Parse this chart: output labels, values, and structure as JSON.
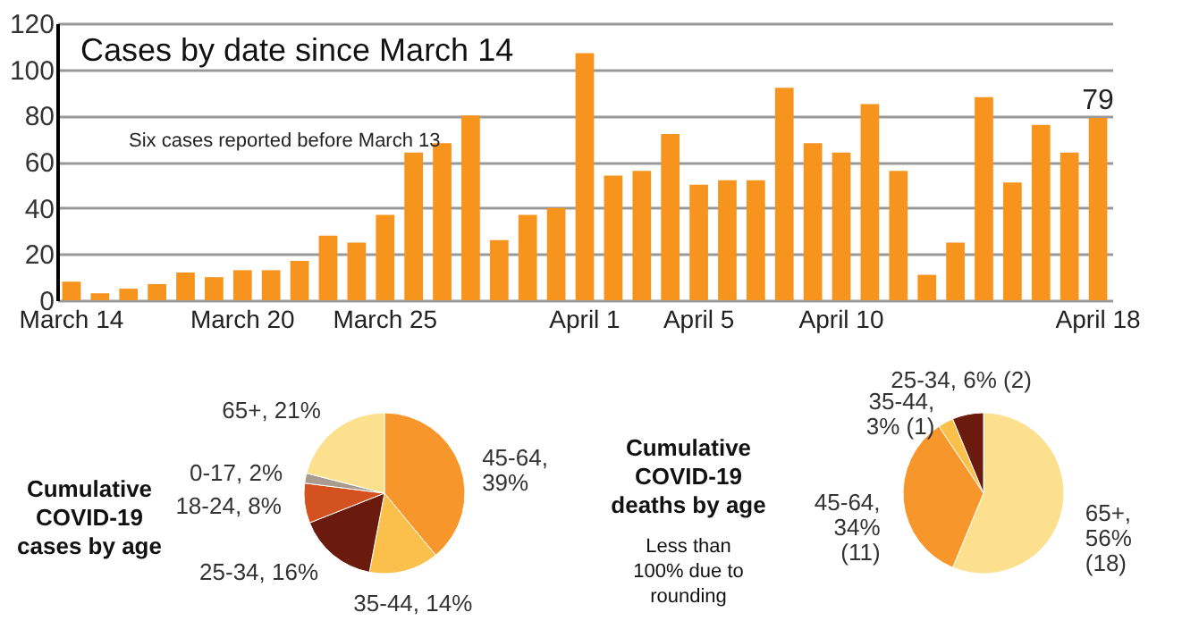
{
  "chart_data": [
    {
      "type": "bar",
      "title": "Cases by date since March 14",
      "categories": [
        "March 14",
        null,
        null,
        null,
        null,
        null,
        "March 20",
        null,
        null,
        null,
        null,
        "March 25",
        null,
        null,
        null,
        null,
        null,
        null,
        "April 1",
        null,
        null,
        null,
        "April 5",
        null,
        null,
        null,
        null,
        "April 10",
        null,
        null,
        null,
        null,
        null,
        null,
        null,
        null,
        "April 18"
      ],
      "values": [
        8,
        3,
        5,
        7,
        12,
        10,
        13,
        13,
        17,
        28,
        25,
        37,
        64,
        68,
        80,
        26,
        37,
        40,
        107,
        54,
        56,
        72,
        50,
        52,
        52,
        92,
        68,
        64,
        85,
        56,
        11,
        25,
        88,
        51,
        76,
        64,
        79
      ],
      "value_labels": [
        null,
        null,
        null,
        null,
        null,
        null,
        null,
        null,
        null,
        null,
        null,
        null,
        null,
        null,
        null,
        null,
        null,
        null,
        null,
        null,
        null,
        null,
        null,
        null,
        null,
        null,
        null,
        null,
        null,
        null,
        null,
        null,
        null,
        null,
        null,
        null,
        "79"
      ],
      "color": "#f7941d",
      "ylim": [
        0,
        120
      ],
      "yticks": [
        0,
        20,
        40,
        60,
        80,
        100,
        120
      ],
      "grid": "y",
      "annotations": [
        "Six cases reported before March 13"
      ]
    },
    {
      "type": "pie",
      "title": "Cumulative COVID-19 cases by age",
      "categories": [
        "45-64, 39%",
        "35-44, 14%",
        "25-34, 16%",
        "18-24, 8%",
        "0-17, 2%",
        "65+, 21%"
      ],
      "values": [
        39,
        14,
        16,
        8,
        2,
        21
      ],
      "colors": [
        "#f7962a",
        "#fbc04c",
        "#6b1a0e",
        "#d4521f",
        "#a89b8f",
        "#fce08e"
      ]
    },
    {
      "type": "pie",
      "title": "Cumulative COVID-19 deaths by age",
      "subtitle": "Less than 100% due to rounding",
      "categories": [
        "65+, 56% (18)",
        "45-64, 34% (11)",
        "35-44, 3% (1)",
        "25-34, 6% (2)"
      ],
      "values": [
        18,
        11,
        1,
        2
      ],
      "colors": [
        "#fce08e",
        "#f7962a",
        "#fbc04c",
        "#6b1a0e"
      ]
    }
  ]
}
